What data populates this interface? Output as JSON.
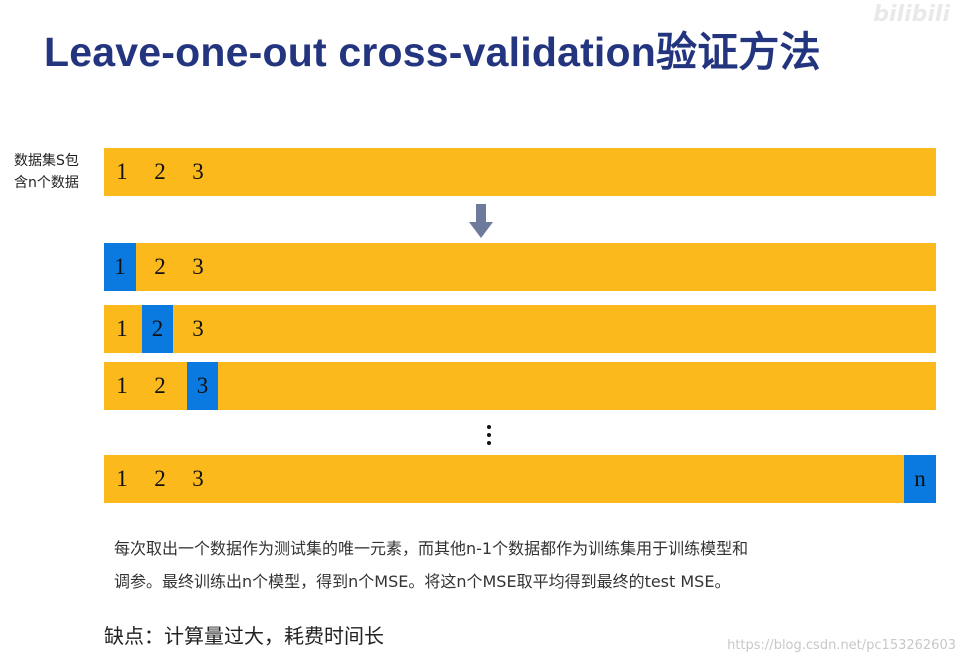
{
  "title": "Leave-one-out cross-validation验证方法",
  "watermark_top": "bilibili",
  "dataset_label_line1": "数据集S包",
  "dataset_label_line2": "含n个数据",
  "cells": {
    "c1": "1",
    "c2": "2",
    "c3": "3",
    "cn": "n"
  },
  "description_line1": "每次取出一个数据作为测试集的唯一元素，而其他n-1个数据都作为训练集用于训练模型和",
  "description_line2": "调参。最终训练出n个模型，得到n个MSE。将这n个MSE取平均得到最终的test MSE。",
  "cons": "缺点：计算量过大，耗费时间长",
  "watermark_bottom": "https://blog.csdn.net/pc153262603",
  "colors": {
    "bar": "#fbb91c",
    "highlight": "#0a7ae0",
    "title": "#24357f"
  },
  "icons": {
    "arrow": "down-arrow-icon",
    "ellipsis": "vertical-ellipsis-icon"
  }
}
